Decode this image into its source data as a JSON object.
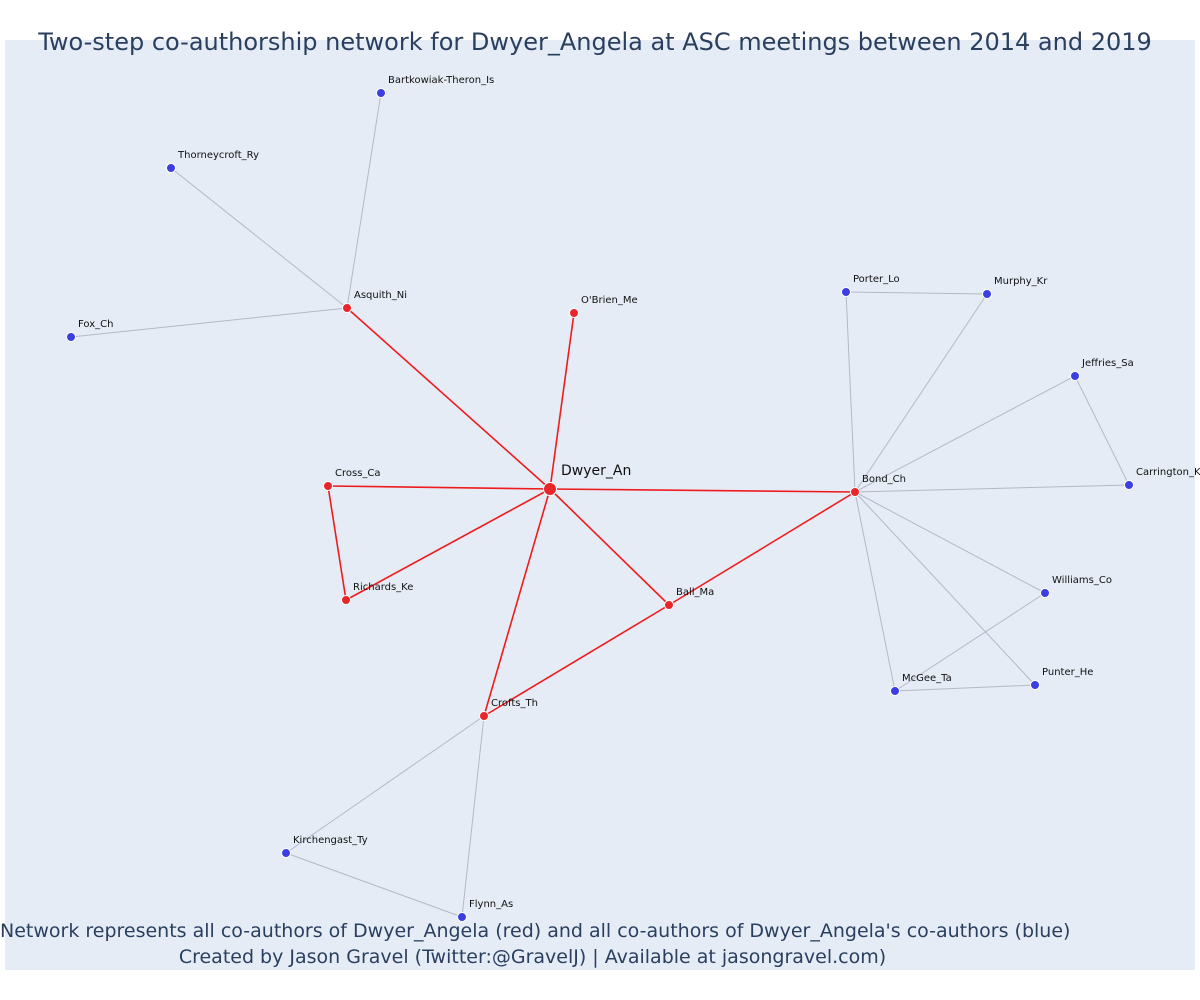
{
  "title": "Two-step co-authorship network for Dwyer_Angela at ASC meetings between 2014 and 2019",
  "caption": {
    "line1": "Network represents all co-authors of Dwyer_Angela (red) and all co-authors of Dwyer_Angela's co-authors (blue)",
    "line2": "Created by Jason Gravel (Twitter:@GravelJ) | Available at jasongravel.com)"
  },
  "colors": {
    "background": "#e5ecf6",
    "red_node": "#e8262a",
    "blue_node": "#3b3fe0",
    "red_edge": "#ee1c1c",
    "gray_edge": "#b4b8c8",
    "title_text": "#2a3f5f"
  },
  "nodes": [
    {
      "id": "Dwyer_An",
      "label": "Dwyer_An",
      "group": "focal"
    },
    {
      "id": "Asquith_Ni",
      "label": "Asquith_Ni",
      "group": "red"
    },
    {
      "id": "OBrien_Me",
      "label": "O'Brien_Me",
      "group": "red"
    },
    {
      "id": "Cross_Ca",
      "label": "Cross_Ca",
      "group": "red"
    },
    {
      "id": "Richards_Ke",
      "label": "Richards_Ke",
      "group": "red"
    },
    {
      "id": "Ball_Ma",
      "label": "Ball_Ma",
      "group": "red"
    },
    {
      "id": "Crofts_Th",
      "label": "Crofts_Th",
      "group": "red"
    },
    {
      "id": "Bond_Ch",
      "label": "Bond_Ch",
      "group": "red"
    },
    {
      "id": "Bartkowiak_Theron_Is",
      "label": "Bartkowiak-Theron_Is",
      "group": "blue"
    },
    {
      "id": "Thorneycroft_Ry",
      "label": "Thorneycroft_Ry",
      "group": "blue"
    },
    {
      "id": "Fox_Ch",
      "label": "Fox_Ch",
      "group": "blue"
    },
    {
      "id": "Porter_Lo",
      "label": "Porter_Lo",
      "group": "blue"
    },
    {
      "id": "Murphy_Kr",
      "label": "Murphy_Kr",
      "group": "blue"
    },
    {
      "id": "Jeffries_Sa",
      "label": "Jeffries_Sa",
      "group": "blue"
    },
    {
      "id": "Carrington_K",
      "label": "Carrington_K",
      "group": "blue"
    },
    {
      "id": "Williams_Co",
      "label": "Williams_Co",
      "group": "blue"
    },
    {
      "id": "Punter_He",
      "label": "Punter_He",
      "group": "blue"
    },
    {
      "id": "McGee_Ta",
      "label": "McGee_Ta",
      "group": "blue"
    },
    {
      "id": "Kirchengast_Ty",
      "label": "Kirchengast_Ty",
      "group": "blue"
    },
    {
      "id": "Flynn_As",
      "label": "Flynn_As",
      "group": "blue"
    }
  ],
  "edges": [
    {
      "source": "Dwyer_An",
      "target": "Asquith_Ni",
      "type": "red"
    },
    {
      "source": "Dwyer_An",
      "target": "OBrien_Me",
      "type": "red"
    },
    {
      "source": "Dwyer_An",
      "target": "Cross_Ca",
      "type": "red"
    },
    {
      "source": "Dwyer_An",
      "target": "Richards_Ke",
      "type": "red"
    },
    {
      "source": "Dwyer_An",
      "target": "Ball_Ma",
      "type": "red"
    },
    {
      "source": "Dwyer_An",
      "target": "Crofts_Th",
      "type": "red"
    },
    {
      "source": "Dwyer_An",
      "target": "Bond_Ch",
      "type": "red"
    },
    {
      "source": "Cross_Ca",
      "target": "Richards_Ke",
      "type": "red"
    },
    {
      "source": "Ball_Ma",
      "target": "Bond_Ch",
      "type": "red"
    },
    {
      "source": "Ball_Ma",
      "target": "Crofts_Th",
      "type": "red"
    },
    {
      "source": "Asquith_Ni",
      "target": "Bartkowiak_Theron_Is",
      "type": "gray"
    },
    {
      "source": "Asquith_Ni",
      "target": "Thorneycroft_Ry",
      "type": "gray"
    },
    {
      "source": "Asquith_Ni",
      "target": "Fox_Ch",
      "type": "gray"
    },
    {
      "source": "Bond_Ch",
      "target": "Porter_Lo",
      "type": "gray"
    },
    {
      "source": "Bond_Ch",
      "target": "Murphy_Kr",
      "type": "gray"
    },
    {
      "source": "Bond_Ch",
      "target": "Jeffries_Sa",
      "type": "gray"
    },
    {
      "source": "Bond_Ch",
      "target": "Carrington_K",
      "type": "gray"
    },
    {
      "source": "Bond_Ch",
      "target": "Williams_Co",
      "type": "gray"
    },
    {
      "source": "Bond_Ch",
      "target": "Punter_He",
      "type": "gray"
    },
    {
      "source": "Bond_Ch",
      "target": "McGee_Ta",
      "type": "gray"
    },
    {
      "source": "Porter_Lo",
      "target": "Murphy_Kr",
      "type": "gray"
    },
    {
      "source": "Jeffries_Sa",
      "target": "Carrington_K",
      "type": "gray"
    },
    {
      "source": "Williams_Co",
      "target": "McGee_Ta",
      "type": "gray"
    },
    {
      "source": "McGee_Ta",
      "target": "Punter_He",
      "type": "gray"
    },
    {
      "source": "Crofts_Th",
      "target": "Kirchengast_Ty",
      "type": "gray"
    },
    {
      "source": "Crofts_Th",
      "target": "Flynn_As",
      "type": "gray"
    },
    {
      "source": "Kirchengast_Ty",
      "target": "Flynn_As",
      "type": "gray"
    }
  ]
}
